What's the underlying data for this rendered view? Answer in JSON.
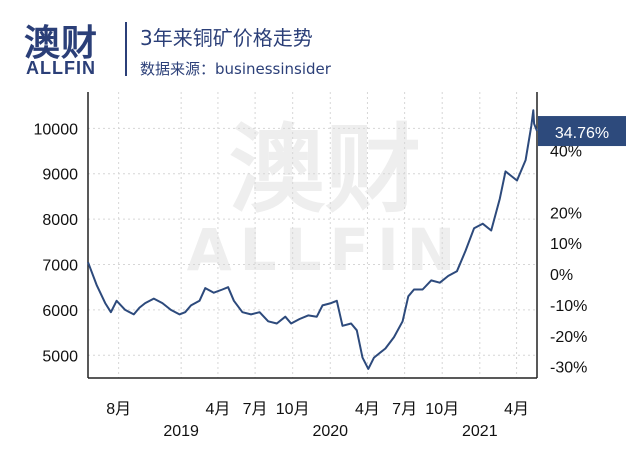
{
  "header": {
    "logo_cn": "澳财",
    "logo_en": "ALLFIN",
    "title": "3年来铜矿价格走势",
    "source": "数据来源：businessinsider"
  },
  "watermark": {
    "cn": "澳财",
    "en": "ALLFIN"
  },
  "colors": {
    "line": "#2d4a7c",
    "brand": "#2b3f78",
    "grid": "#d6d6d6",
    "badge": "#2d4a7c"
  },
  "chart_data": {
    "type": "line",
    "title": "3年来铜矿价格走势",
    "x_range": [
      "2018-05-18",
      "2021-05-21"
    ],
    "xlabel": "",
    "ylabel": "",
    "ylim": [
      4500,
      10800
    ],
    "y_ticks": [
      5000,
      6000,
      7000,
      8000,
      9000,
      10000
    ],
    "y_tick_labels": [
      "5000",
      "6000",
      "7000",
      "8000",
      "9000",
      "10000"
    ],
    "y2_ticks": [
      {
        "value": 4750,
        "label": "-30%"
      },
      {
        "value": 5430,
        "label": "-20%"
      },
      {
        "value": 6110,
        "label": "-10%"
      },
      {
        "value": 6790,
        "label": "0%"
      },
      {
        "value": 7470,
        "label": "10%"
      },
      {
        "value": 8150,
        "label": "20%"
      },
      {
        "value": 9510,
        "label": "40%"
      }
    ],
    "x_ticks": [
      {
        "date": "2018-08-01",
        "label": "8月",
        "year": ""
      },
      {
        "date": "2019-01-01",
        "label": "",
        "year": "2019"
      },
      {
        "date": "2019-04-01",
        "label": "4月",
        "year": ""
      },
      {
        "date": "2019-07-01",
        "label": "7月",
        "year": ""
      },
      {
        "date": "2019-10-01",
        "label": "10月",
        "year": ""
      },
      {
        "date": "2020-01-01",
        "label": "",
        "year": "2020"
      },
      {
        "date": "2020-04-01",
        "label": "4月",
        "year": ""
      },
      {
        "date": "2020-07-01",
        "label": "7月",
        "year": ""
      },
      {
        "date": "2020-10-01",
        "label": "10月",
        "year": ""
      },
      {
        "date": "2021-01-01",
        "label": "",
        "year": "2021"
      },
      {
        "date": "2021-04-01",
        "label": "4月",
        "year": ""
      }
    ],
    "grid": true,
    "badge": {
      "label": "34.76%",
      "value": 9940
    },
    "series": [
      {
        "points": [
          [
            "2018-05-18",
            7050
          ],
          [
            "2018-06-08",
            6550
          ],
          [
            "2018-06-29",
            6150
          ],
          [
            "2018-07-13",
            5950
          ],
          [
            "2018-07-27",
            6200
          ],
          [
            "2018-08-17",
            6000
          ],
          [
            "2018-09-07",
            5900
          ],
          [
            "2018-09-21",
            6050
          ],
          [
            "2018-10-05",
            6150
          ],
          [
            "2018-10-26",
            6250
          ],
          [
            "2018-11-16",
            6150
          ],
          [
            "2018-12-07",
            6000
          ],
          [
            "2018-12-28",
            5900
          ],
          [
            "2019-01-11",
            5950
          ],
          [
            "2019-01-25",
            6100
          ],
          [
            "2019-02-15",
            6200
          ],
          [
            "2019-03-01",
            6480
          ],
          [
            "2019-03-22",
            6380
          ],
          [
            "2019-04-12",
            6450
          ],
          [
            "2019-04-26",
            6500
          ],
          [
            "2019-05-10",
            6200
          ],
          [
            "2019-05-31",
            5950
          ],
          [
            "2019-06-21",
            5900
          ],
          [
            "2019-07-12",
            5950
          ],
          [
            "2019-08-02",
            5750
          ],
          [
            "2019-08-23",
            5700
          ],
          [
            "2019-09-13",
            5850
          ],
          [
            "2019-09-27",
            5700
          ],
          [
            "2019-10-18",
            5800
          ],
          [
            "2019-11-08",
            5880
          ],
          [
            "2019-11-29",
            5850
          ],
          [
            "2019-12-13",
            6100
          ],
          [
            "2020-01-03",
            6150
          ],
          [
            "2020-01-17",
            6200
          ],
          [
            "2020-01-31",
            5650
          ],
          [
            "2020-02-21",
            5700
          ],
          [
            "2020-03-06",
            5550
          ],
          [
            "2020-03-20",
            4950
          ],
          [
            "2020-04-03",
            4700
          ],
          [
            "2020-04-17",
            4950
          ],
          [
            "2020-05-01",
            5050
          ],
          [
            "2020-05-15",
            5150
          ],
          [
            "2020-06-05",
            5400
          ],
          [
            "2020-06-26",
            5750
          ],
          [
            "2020-07-10",
            6300
          ],
          [
            "2020-07-24",
            6450
          ],
          [
            "2020-08-14",
            6450
          ],
          [
            "2020-09-04",
            6650
          ],
          [
            "2020-09-25",
            6600
          ],
          [
            "2020-10-16",
            6750
          ],
          [
            "2020-11-06",
            6850
          ],
          [
            "2020-11-27",
            7300
          ],
          [
            "2020-12-18",
            7800
          ],
          [
            "2021-01-08",
            7900
          ],
          [
            "2021-01-29",
            7750
          ],
          [
            "2021-02-19",
            8450
          ],
          [
            "2021-03-05",
            9050
          ],
          [
            "2021-03-19",
            8950
          ],
          [
            "2021-04-02",
            8850
          ],
          [
            "2021-04-23",
            9300
          ],
          [
            "2021-05-07",
            10050
          ],
          [
            "2021-05-12",
            10400
          ],
          [
            "2021-05-14",
            10100
          ],
          [
            "2021-05-21",
            9940
          ]
        ]
      }
    ]
  }
}
